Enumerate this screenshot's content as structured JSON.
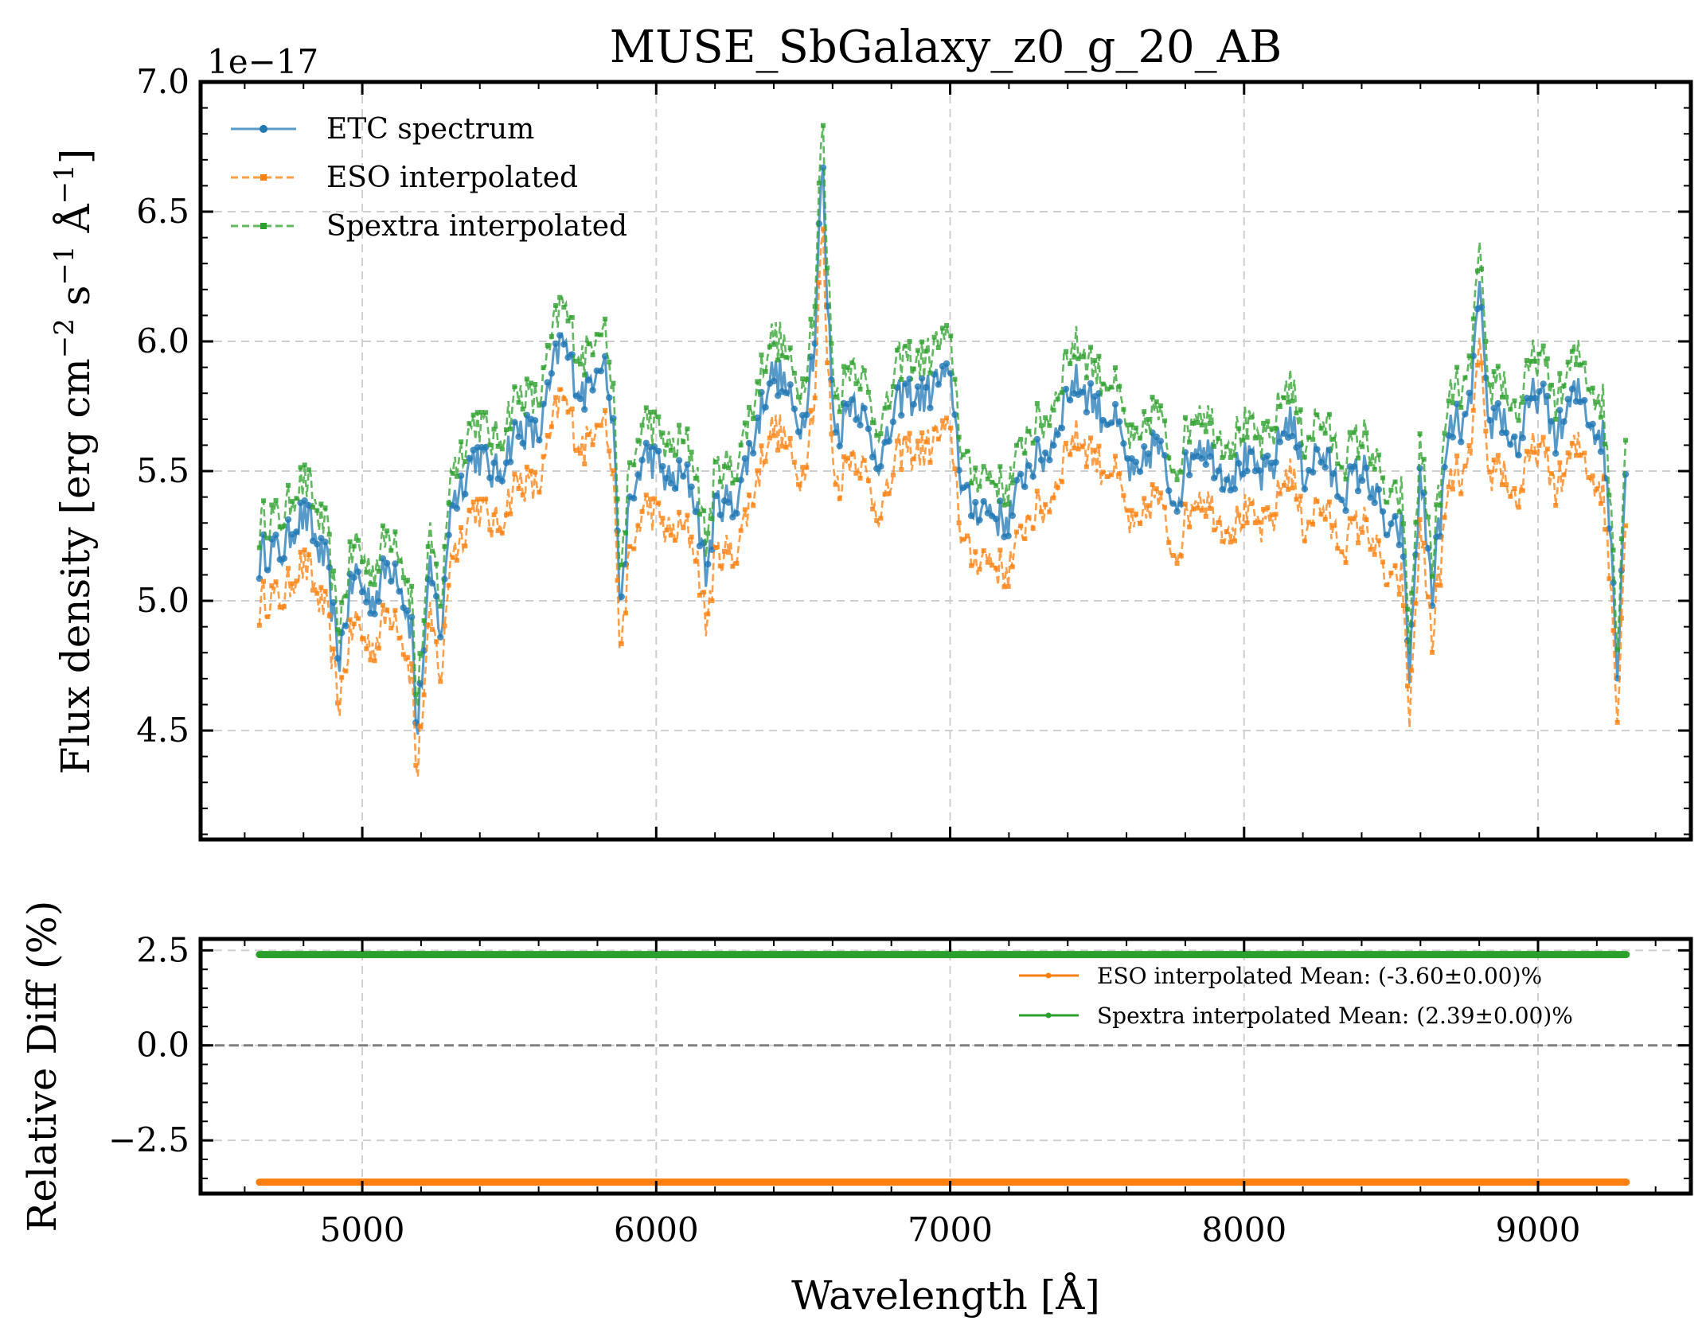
{
  "chart_data": [
    {
      "type": "line",
      "title": "MUSE_SbGalaxy_z0_g_20_AB",
      "ylabel": "Flux density [erg cm⁻² s⁻¹ Å⁻¹]",
      "ylabel_parts": [
        "Flux density [erg cm",
        "−2",
        " s",
        "−1",
        " Å",
        "−1",
        "]"
      ],
      "offset_label": "1e−17",
      "xlim": [
        4450,
        9520
      ],
      "ylim": [
        4.08,
        7.0
      ],
      "yticks": [
        4.5,
        5.0,
        5.5,
        6.0,
        6.5,
        7.0
      ],
      "ytick_labels": [
        "4.5",
        "5.0",
        "5.5",
        "6.0",
        "6.5",
        "7.0"
      ],
      "grid": true,
      "legend_position": "top-left",
      "colors": {
        "etc": "#1f77b4",
        "eso": "#ff7f0e",
        "spextra": "#2ca02c"
      },
      "series": [
        {
          "name": "ETC spectrum",
          "style": "solid",
          "x": [
            4650,
            4700,
            4760,
            4820,
            4880,
            4920,
            4980,
            5050,
            5120,
            5170,
            5185,
            5230,
            5270,
            5300,
            5380,
            5460,
            5530,
            5600,
            5680,
            5760,
            5820,
            5860,
            5880,
            5900,
            5960,
            6020,
            6080,
            6140,
            6170,
            6200,
            6260,
            6320,
            6380,
            6440,
            6500,
            6540,
            6565,
            6580,
            6610,
            6660,
            6720,
            6780,
            6840,
            6900,
            6960,
            7010,
            7040,
            7080,
            7120,
            7170,
            7230,
            7280,
            7340,
            7400,
            7450,
            7480,
            7520,
            7580,
            7640,
            7700,
            7760,
            7830,
            7900,
            7970,
            8040,
            8100,
            8160,
            8200,
            8240,
            8300,
            8370,
            8440,
            8500,
            8540,
            8560,
            8600,
            8640,
            8700,
            8760,
            8800,
            8830,
            8870,
            8930,
            8990,
            9060,
            9120,
            9180,
            9220,
            9250,
            9270,
            9300
          ],
          "y": [
            5.1,
            5.2,
            5.3,
            5.25,
            5.2,
            4.75,
            5.1,
            5.05,
            5.1,
            4.95,
            4.5,
            5.05,
            4.85,
            5.45,
            5.5,
            5.55,
            5.6,
            5.7,
            5.95,
            5.85,
            5.9,
            5.6,
            4.95,
            5.35,
            5.5,
            5.55,
            5.45,
            5.35,
            5.15,
            5.4,
            5.3,
            5.65,
            5.8,
            5.85,
            5.7,
            5.95,
            6.7,
            6.2,
            5.7,
            5.75,
            5.65,
            5.6,
            5.75,
            5.85,
            5.8,
            5.8,
            5.5,
            5.35,
            5.3,
            5.35,
            5.4,
            5.5,
            5.65,
            5.75,
            5.85,
            5.85,
            5.7,
            5.6,
            5.5,
            5.55,
            5.45,
            5.55,
            5.6,
            5.45,
            5.55,
            5.5,
            5.7,
            5.55,
            5.55,
            5.45,
            5.5,
            5.4,
            5.3,
            5.25,
            4.6,
            5.5,
            5.1,
            5.6,
            5.7,
            6.25,
            5.6,
            5.7,
            5.65,
            5.75,
            5.7,
            5.75,
            5.7,
            5.7,
            5.2,
            4.7,
            5.5
          ]
        },
        {
          "name": "ESO interpolated",
          "style": "dashed",
          "x": [
            4650,
            4700,
            4760,
            4820,
            4880,
            4920,
            4980,
            5050,
            5120,
            5170,
            5185,
            5230,
            5270,
            5300,
            5380,
            5460,
            5530,
            5600,
            5680,
            5760,
            5820,
            5860,
            5880,
            5900,
            5960,
            6020,
            6080,
            6140,
            6170,
            6200,
            6260,
            6320,
            6380,
            6440,
            6500,
            6540,
            6565,
            6580,
            6610,
            6660,
            6720,
            6780,
            6840,
            6900,
            6960,
            7010,
            7040,
            7080,
            7120,
            7170,
            7230,
            7280,
            7340,
            7400,
            7450,
            7480,
            7520,
            7580,
            7640,
            7700,
            7760,
            7830,
            7900,
            7970,
            8040,
            8100,
            8160,
            8200,
            8240,
            8300,
            8370,
            8440,
            8500,
            8540,
            8560,
            8600,
            8640,
            8700,
            8760,
            8800,
            8830,
            8870,
            8930,
            8990,
            9060,
            9120,
            9180,
            9220,
            9250,
            9270,
            9300
          ],
          "y": [
            4.92,
            5.02,
            5.11,
            5.06,
            5.01,
            4.58,
            4.92,
            4.87,
            4.92,
            4.77,
            4.34,
            4.87,
            4.68,
            5.25,
            5.3,
            5.35,
            5.4,
            5.5,
            5.74,
            5.64,
            5.69,
            5.4,
            4.77,
            5.16,
            5.3,
            5.35,
            5.25,
            5.16,
            4.96,
            5.2,
            5.11,
            5.45,
            5.59,
            5.64,
            5.5,
            5.74,
            6.46,
            5.98,
            5.5,
            5.54,
            5.45,
            5.4,
            5.54,
            5.64,
            5.59,
            5.59,
            5.3,
            5.16,
            5.11,
            5.16,
            5.2,
            5.3,
            5.45,
            5.54,
            5.64,
            5.64,
            5.5,
            5.4,
            5.3,
            5.35,
            5.25,
            5.35,
            5.4,
            5.25,
            5.35,
            5.3,
            5.5,
            5.35,
            5.35,
            5.25,
            5.3,
            5.2,
            5.11,
            5.06,
            4.43,
            5.3,
            4.92,
            5.4,
            5.5,
            6.03,
            5.4,
            5.5,
            5.45,
            5.54,
            5.5,
            5.54,
            5.5,
            5.5,
            5.01,
            4.53,
            5.3
          ]
        },
        {
          "name": "Spextra interpolated",
          "style": "dashed",
          "x": [
            4650,
            4700,
            4760,
            4820,
            4880,
            4920,
            4980,
            5050,
            5120,
            5170,
            5185,
            5230,
            5270,
            5300,
            5380,
            5460,
            5530,
            5600,
            5680,
            5760,
            5820,
            5860,
            5880,
            5900,
            5960,
            6020,
            6080,
            6140,
            6170,
            6200,
            6260,
            6320,
            6380,
            6440,
            6500,
            6540,
            6565,
            6580,
            6610,
            6660,
            6720,
            6780,
            6840,
            6900,
            6960,
            7010,
            7040,
            7080,
            7120,
            7170,
            7230,
            7280,
            7340,
            7400,
            7450,
            7480,
            7520,
            7580,
            7640,
            7700,
            7760,
            7830,
            7900,
            7970,
            8040,
            8100,
            8160,
            8200,
            8240,
            8300,
            8370,
            8440,
            8500,
            8540,
            8560,
            8600,
            8640,
            8700,
            8760,
            8800,
            8830,
            8870,
            8930,
            8990,
            9060,
            9120,
            9180,
            9220,
            9250,
            9270,
            9300
          ],
          "y": [
            5.22,
            5.33,
            5.43,
            5.38,
            5.33,
            4.86,
            5.22,
            5.17,
            5.22,
            5.07,
            4.61,
            5.17,
            4.97,
            5.58,
            5.63,
            5.68,
            5.73,
            5.84,
            6.09,
            5.99,
            6.04,
            5.73,
            5.07,
            5.48,
            5.63,
            5.68,
            5.58,
            5.48,
            5.27,
            5.53,
            5.43,
            5.79,
            5.94,
            5.99,
            5.84,
            6.09,
            6.86,
            6.35,
            5.84,
            5.89,
            5.79,
            5.73,
            5.89,
            5.99,
            5.94,
            5.94,
            5.63,
            5.48,
            5.43,
            5.48,
            5.53,
            5.63,
            5.79,
            5.89,
            5.99,
            5.99,
            5.84,
            5.73,
            5.63,
            5.68,
            5.58,
            5.68,
            5.73,
            5.58,
            5.68,
            5.63,
            5.84,
            5.68,
            5.68,
            5.58,
            5.63,
            5.53,
            5.43,
            5.38,
            4.71,
            5.63,
            5.22,
            5.73,
            5.84,
            6.4,
            5.73,
            5.84,
            5.79,
            5.89,
            5.84,
            5.89,
            5.84,
            5.84,
            5.33,
            4.81,
            5.63
          ]
        }
      ]
    },
    {
      "type": "line",
      "xlabel": "Wavelength [Å]",
      "ylabel": "Relative Diff (%)",
      "xlim": [
        4450,
        9520
      ],
      "ylim": [
        -3.9,
        2.8
      ],
      "xticks": [
        5000,
        6000,
        7000,
        8000,
        9000
      ],
      "xtick_labels": [
        "5000",
        "6000",
        "7000",
        "8000",
        "9000"
      ],
      "yticks": [
        -2.5,
        0.0,
        2.5
      ],
      "ytick_labels": [
        "−2.5",
        "0.0",
        "2.5"
      ],
      "grid": true,
      "legend_position": "top-right",
      "reference_line": 0.0,
      "series": [
        {
          "name": "ESO interpolated Mean: (-3.60±0.00)%",
          "x": [
            4650,
            9300
          ],
          "y": [
            -3.6,
            -3.6
          ]
        },
        {
          "name": "Spextra interpolated Mean: (2.39±0.00)%",
          "x": [
            4650,
            9300
          ],
          "y": [
            2.39,
            2.39
          ]
        }
      ]
    }
  ]
}
